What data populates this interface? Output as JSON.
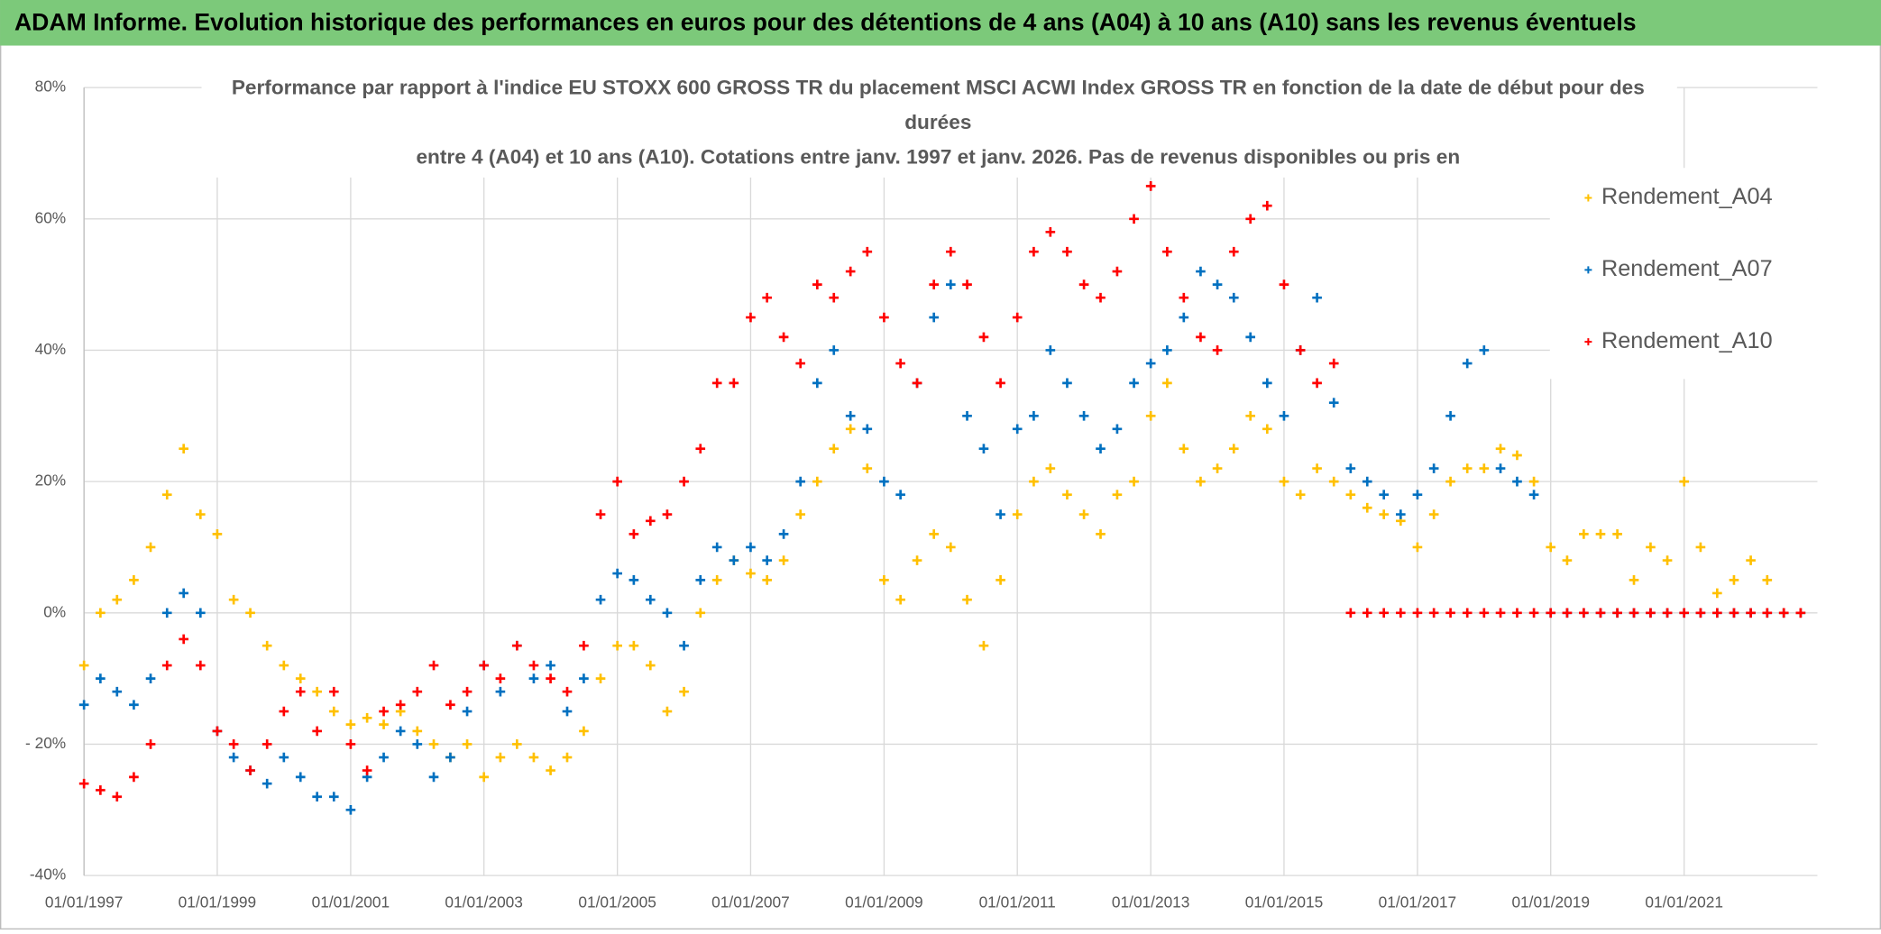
{
  "chart_data": {
    "type": "scatter",
    "title": "ADAM Informe. Evolution historique des performances en euros pour des détentions de 4 ans (A04) à 10 ans (A10) sans les revenus éventuels",
    "subtitle": [
      "Performance par rapport à l'indice EU STOXX 600 GROSS TR  du placement MSCI ACWI Index GROSS TR en fonction de la date de début pour des",
      "durées",
      "entre 4 (A04) et 10 ans (A10). Cotations entre janv. 1997 et janv. 2026. Pas de revenus disponibles ou pris en"
    ],
    "x": [
      "1997-01-01",
      "1997-04-01",
      "1997-07-01",
      "1997-10-01",
      "1998-01-01",
      "1998-04-01",
      "1998-07-01",
      "1998-10-01",
      "1999-01-01",
      "1999-04-01",
      "1999-07-01",
      "1999-10-01",
      "2000-01-01",
      "2000-04-01",
      "2000-07-01",
      "2000-10-01",
      "2001-01-01",
      "2001-04-01",
      "2001-07-01",
      "2001-10-01",
      "2002-01-01",
      "2002-04-01",
      "2002-07-01",
      "2002-10-01",
      "2003-01-01",
      "2003-04-01",
      "2003-07-01",
      "2003-10-01",
      "2004-01-01",
      "2004-04-01",
      "2004-07-01",
      "2004-10-01",
      "2005-01-01",
      "2005-04-01",
      "2005-07-01",
      "2005-10-01",
      "2006-01-01",
      "2006-04-01",
      "2006-07-01",
      "2006-10-01",
      "2007-01-01",
      "2007-04-01",
      "2007-07-01",
      "2007-10-01",
      "2008-01-01",
      "2008-04-01",
      "2008-07-01",
      "2008-10-01",
      "2009-01-01",
      "2009-04-01",
      "2009-07-01",
      "2009-10-01",
      "2010-01-01",
      "2010-04-01",
      "2010-07-01",
      "2010-10-01",
      "2011-01-01",
      "2011-04-01",
      "2011-07-01",
      "2011-10-01",
      "2012-01-01",
      "2012-04-01",
      "2012-07-01",
      "2012-10-01",
      "2013-01-01",
      "2013-04-01",
      "2013-07-01",
      "2013-10-01",
      "2014-01-01",
      "2014-04-01",
      "2014-07-01",
      "2014-10-01",
      "2015-01-01",
      "2015-04-01",
      "2015-07-01",
      "2015-10-01",
      "2016-01-01",
      "2016-04-01",
      "2016-07-01",
      "2016-10-01",
      "2017-01-01",
      "2017-04-01",
      "2017-07-01",
      "2017-10-01",
      "2018-01-01",
      "2018-04-01",
      "2018-07-01",
      "2018-10-01",
      "2019-01-01",
      "2019-04-01",
      "2019-07-01",
      "2019-10-01",
      "2020-01-01",
      "2020-04-01",
      "2020-07-01",
      "2020-10-01",
      "2021-01-01",
      "2021-04-01",
      "2021-07-01",
      "2021-10-01",
      "2022-01-01",
      "2022-04-01",
      "2022-07-01",
      "2022-10-01"
    ],
    "series": [
      {
        "name": "Rendement_A04",
        "color": "#ffc000",
        "values": [
          -8,
          0,
          2,
          5,
          10,
          18,
          25,
          15,
          12,
          2,
          0,
          -5,
          -8,
          -10,
          -12,
          -15,
          -17,
          -16,
          -17,
          -15,
          -18,
          -20,
          -22,
          -20,
          -25,
          -22,
          -20,
          -22,
          -24,
          -22,
          -18,
          -10,
          -5,
          -5,
          -8,
          -15,
          -12,
          0,
          5,
          8,
          6,
          5,
          8,
          15,
          20,
          25,
          28,
          22,
          5,
          2,
          8,
          12,
          10,
          2,
          -5,
          5,
          15,
          20,
          22,
          18,
          15,
          12,
          18,
          20,
          30,
          35,
          25,
          20,
          22,
          25,
          30,
          28,
          20,
          18,
          22,
          20,
          18,
          16,
          15,
          14,
          10,
          15,
          20,
          22,
          22,
          25,
          24,
          20,
          10,
          8,
          12,
          12,
          12,
          5,
          10,
          8,
          20,
          10,
          3,
          5,
          8,
          5,
          0,
          0
        ]
      },
      {
        "name": "Rendement_A07",
        "color": "#0070c0",
        "values": [
          -14,
          -10,
          -12,
          -14,
          -10,
          0,
          3,
          0,
          -18,
          -22,
          -24,
          -26,
          -22,
          -25,
          -28,
          -28,
          -30,
          -25,
          -22,
          -18,
          -20,
          -25,
          -22,
          -15,
          -8,
          -12,
          -5,
          -10,
          -8,
          -15,
          -10,
          2,
          6,
          5,
          2,
          0,
          -5,
          5,
          10,
          8,
          10,
          8,
          12,
          20,
          35,
          40,
          30,
          28,
          20,
          18,
          35,
          45,
          50,
          30,
          25,
          15,
          28,
          30,
          40,
          35,
          30,
          25,
          28,
          35,
          38,
          40,
          45,
          52,
          50,
          48,
          42,
          35,
          30,
          40,
          48,
          32,
          22,
          20,
          18,
          15,
          18,
          22,
          30,
          38,
          40,
          22,
          20,
          18,
          0,
          0,
          0,
          0,
          0,
          0,
          0,
          0,
          0,
          0,
          0,
          0,
          0,
          0,
          0,
          0
        ]
      },
      {
        "name": "Rendement_A10",
        "color": "#ff0000",
        "values": [
          -26,
          -27,
          -28,
          -25,
          -20,
          -8,
          -4,
          -8,
          -18,
          -20,
          -24,
          -20,
          -15,
          -12,
          -18,
          -12,
          -20,
          -24,
          -15,
          -14,
          -12,
          -8,
          -14,
          -12,
          -8,
          -10,
          -5,
          -8,
          -10,
          -12,
          -5,
          15,
          20,
          12,
          14,
          15,
          20,
          25,
          35,
          35,
          45,
          48,
          42,
          38,
          50,
          48,
          52,
          55,
          45,
          38,
          35,
          50,
          55,
          50,
          42,
          35,
          45,
          55,
          58,
          55,
          50,
          48,
          52,
          60,
          65,
          55,
          48,
          42,
          40,
          55,
          60,
          62,
          50,
          40,
          35,
          38,
          0,
          0,
          0,
          0,
          0,
          0,
          0,
          0,
          0,
          0,
          0,
          0,
          0,
          0,
          0,
          0,
          0,
          0,
          0,
          0,
          0,
          0,
          0,
          0,
          0,
          0,
          0,
          0
        ]
      }
    ],
    "xlim": [
      "1997-01-01",
      "2023-01-01"
    ],
    "xticks": [
      {
        "value": "1997-01-01",
        "label": "01/01/1997"
      },
      {
        "value": "1999-01-01",
        "label": "01/01/1999"
      },
      {
        "value": "2001-01-01",
        "label": "01/01/2001"
      },
      {
        "value": "2003-01-01",
        "label": "01/01/2003"
      },
      {
        "value": "2005-01-01",
        "label": "01/01/2005"
      },
      {
        "value": "2007-01-01",
        "label": "01/01/2007"
      },
      {
        "value": "2009-01-01",
        "label": "01/01/2009"
      },
      {
        "value": "2011-01-01",
        "label": "01/01/2011"
      },
      {
        "value": "2013-01-01",
        "label": "01/01/2013"
      },
      {
        "value": "2015-01-01",
        "label": "01/01/2015"
      },
      {
        "value": "2017-01-01",
        "label": "01/01/2017"
      },
      {
        "value": "2019-01-01",
        "label": "01/01/2019"
      },
      {
        "value": "2021-01-01",
        "label": "01/01/2021"
      }
    ],
    "ylim": [
      -40,
      80
    ],
    "yticks": [
      {
        "value": -40,
        "label": "-40%"
      },
      {
        "value": -20,
        "label": "- 20%"
      },
      {
        "value": 0,
        "label": "0%"
      },
      {
        "value": 20,
        "label": "20%"
      },
      {
        "value": 40,
        "label": "40%"
      },
      {
        "value": 60,
        "label": "60%"
      },
      {
        "value": 80,
        "label": "80%"
      }
    ],
    "grid": true,
    "legend": "top-right"
  }
}
